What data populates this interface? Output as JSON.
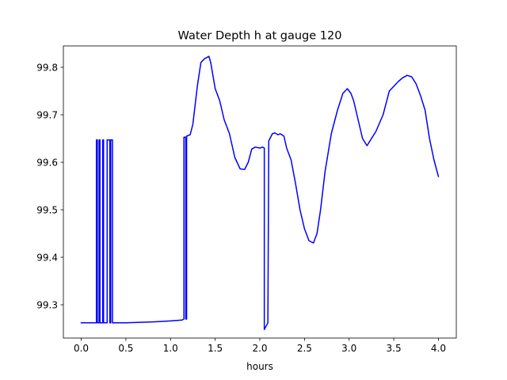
{
  "chart_data": {
    "type": "line",
    "title": "Water Depth h at gauge 120",
    "xlabel": "hours",
    "ylabel": "",
    "xlim": [
      -0.2,
      4.2
    ],
    "ylim": [
      99.23,
      99.845
    ],
    "xticks": [
      0.0,
      0.5,
      1.0,
      1.5,
      2.0,
      2.5,
      3.0,
      3.5,
      4.0
    ],
    "xtick_labels": [
      "0.0",
      "0.5",
      "1.0",
      "1.5",
      "2.0",
      "2.5",
      "3.0",
      "3.5",
      "4.0"
    ],
    "yticks": [
      99.3,
      99.4,
      99.5,
      99.6,
      99.7,
      99.8
    ],
    "ytick_labels": [
      "99.3",
      "99.4",
      "99.5",
      "99.6",
      "99.7",
      "99.8"
    ],
    "grid": false,
    "series": [
      {
        "color": "#0000ff",
        "x": [
          0.0,
          0.17,
          0.17,
          0.18,
          0.18,
          0.2,
          0.2,
          0.21,
          0.21,
          0.24,
          0.24,
          0.25,
          0.25,
          0.29,
          0.29,
          0.32,
          0.32,
          0.33,
          0.33,
          0.35,
          0.35,
          0.36,
          0.36,
          0.5,
          0.8,
          1.0,
          1.13,
          1.15,
          1.15,
          1.17,
          1.17,
          1.18,
          1.18,
          1.22,
          1.25,
          1.3,
          1.34,
          1.38,
          1.43,
          1.45,
          1.5,
          1.55,
          1.6,
          1.66,
          1.72,
          1.78,
          1.83,
          1.87,
          1.91,
          1.95,
          2.0,
          2.03,
          2.05,
          2.05,
          2.09,
          2.09,
          2.1,
          2.14,
          2.17,
          2.2,
          2.23,
          2.27,
          2.3,
          2.35,
          2.4,
          2.45,
          2.5,
          2.55,
          2.6,
          2.64,
          2.68,
          2.73,
          2.8,
          2.87,
          2.93,
          2.98,
          3.02,
          3.05,
          3.1,
          3.15,
          3.2,
          3.25,
          3.3,
          3.38,
          3.45,
          3.5,
          3.55,
          3.6,
          3.65,
          3.7,
          3.75,
          3.8,
          3.85,
          3.9,
          3.95,
          4.0
        ],
        "y": [
          99.262,
          99.262,
          99.647,
          99.647,
          99.262,
          99.262,
          99.647,
          99.647,
          99.262,
          99.262,
          99.647,
          99.647,
          99.262,
          99.262,
          99.647,
          99.647,
          99.262,
          99.262,
          99.647,
          99.647,
          99.262,
          99.262,
          99.262,
          99.262,
          99.264,
          99.266,
          99.268,
          99.27,
          99.653,
          99.653,
          99.27,
          99.27,
          99.655,
          99.658,
          99.68,
          99.76,
          99.81,
          99.818,
          99.823,
          99.81,
          99.755,
          99.73,
          99.69,
          99.66,
          99.61,
          99.586,
          99.585,
          99.6,
          99.628,
          99.632,
          99.63,
          99.632,
          99.63,
          99.248,
          99.262,
          99.262,
          99.645,
          99.66,
          99.662,
          99.658,
          99.66,
          99.655,
          99.63,
          99.605,
          99.555,
          99.5,
          99.46,
          99.435,
          99.43,
          99.45,
          99.5,
          99.58,
          99.66,
          99.71,
          99.745,
          99.755,
          99.745,
          99.73,
          99.69,
          99.65,
          99.635,
          99.65,
          99.665,
          99.7,
          99.75,
          99.76,
          99.77,
          99.778,
          99.783,
          99.78,
          99.765,
          99.74,
          99.71,
          99.65,
          99.605,
          99.57
        ]
      }
    ]
  }
}
